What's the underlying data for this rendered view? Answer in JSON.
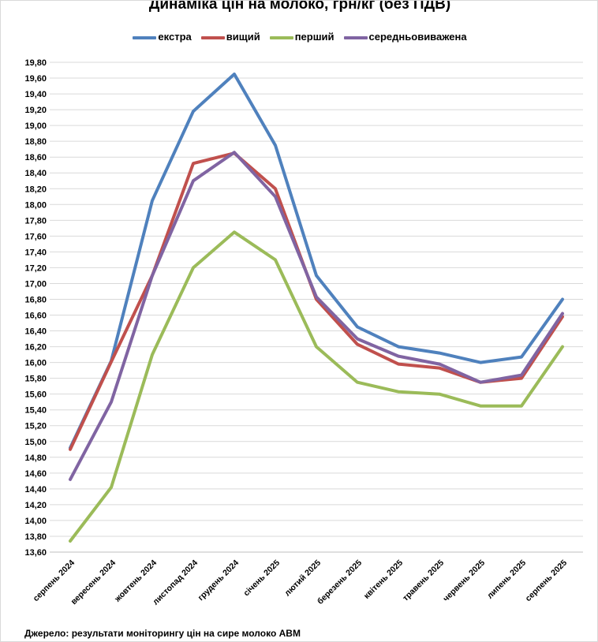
{
  "chart_data": {
    "type": "line",
    "title": "Динаміка цін на молоко, грн/кг (без ПДВ)",
    "xlabel": "",
    "ylabel": "",
    "categories": [
      "серпень 2024",
      "вересень 2024",
      "жовтень 2024",
      "листопад 2024",
      "грудень 2024",
      "січень 2025",
      "лютий 2025",
      "березень 2025",
      "квітень 2025",
      "травень 2025",
      "червень 2025",
      "липень 2025",
      "серпень 2025"
    ],
    "series": [
      {
        "name": "екстра",
        "color": "#4f81bd",
        "values": [
          14.92,
          16.02,
          18.05,
          19.18,
          19.65,
          18.75,
          17.1,
          16.45,
          16.2,
          16.12,
          16.0,
          16.07,
          16.8
        ]
      },
      {
        "name": "вищий",
        "color": "#c0504d",
        "values": [
          14.9,
          16.01,
          17.1,
          18.52,
          18.65,
          18.2,
          16.8,
          16.23,
          15.98,
          15.93,
          15.75,
          15.8,
          16.58
        ]
      },
      {
        "name": "перший",
        "color": "#9bbb59",
        "values": [
          13.74,
          14.42,
          16.1,
          17.2,
          17.65,
          17.3,
          16.2,
          15.75,
          15.63,
          15.6,
          15.45,
          15.45,
          16.2
        ]
      },
      {
        "name": "середньовиважена",
        "color": "#8064a2",
        "values": [
          14.52,
          15.5,
          17.1,
          18.3,
          18.66,
          18.1,
          16.83,
          16.3,
          16.08,
          15.98,
          15.75,
          15.84,
          16.62
        ]
      }
    ],
    "ylim": [
      13.6,
      19.8
    ],
    "ystep": 0.2,
    "ytick_labels": [
      "13,60",
      "13,80",
      "14,00",
      "14,20",
      "14,40",
      "14,60",
      "14,80",
      "15,00",
      "15,20",
      "15,40",
      "15,60",
      "15,80",
      "16,00",
      "16,20",
      "16,40",
      "16,60",
      "16,80",
      "17,00",
      "17,20",
      "17,40",
      "17,60",
      "17,80",
      "18,00",
      "18,20",
      "18,40",
      "18,60",
      "18,80",
      "19,00",
      "19,20",
      "19,40",
      "19,60",
      "19,80"
    ],
    "grid": true,
    "legend_position": "top"
  },
  "source_text": "Джерело: результати моніторингу цін на сире молоко АВМ",
  "colors": {
    "grid": "#d9d9d9",
    "axis": "#bfbfbf"
  }
}
